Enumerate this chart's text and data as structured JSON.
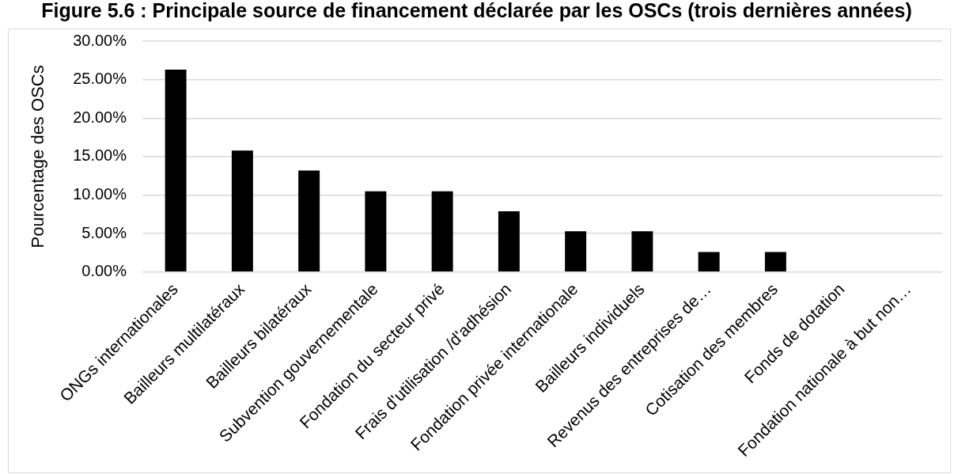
{
  "chart_data": {
    "type": "bar",
    "title": "Figure 5.6 : Principale source de financement déclarée par les OSCs (trois dernières années)",
    "ylabel": "Pourcentage des OSCs",
    "categories": [
      "ONGs internationales",
      "Bailleurs multilatéraux",
      "Bailleurs bilatéraux",
      "Subvention gouvernementale",
      "Fondation du secteur privé",
      "Frais d'utilisation /d'adhésion",
      "Fondation privée internationale",
      "Bailleurs individuels",
      "Revenus des entreprises de…",
      "Cotisation des membres",
      "Fonds de dotation",
      "Fondation nationale à but non…"
    ],
    "values": [
      26.3,
      15.8,
      13.2,
      10.5,
      10.5,
      7.9,
      5.3,
      5.3,
      2.6,
      2.6,
      0,
      0
    ],
    "color": "#000000",
    "ylim": [
      0,
      30
    ],
    "yticks": [
      {
        "value": 0,
        "label": "0.00%"
      },
      {
        "value": 5,
        "label": "5.00%"
      },
      {
        "value": 10,
        "label": "10.00%"
      },
      {
        "value": 15,
        "label": "15.00%"
      },
      {
        "value": 20,
        "label": "20.00%"
      },
      {
        "value": 25,
        "label": "25.00%"
      },
      {
        "value": 30,
        "label": "30.00%"
      }
    ],
    "grid": "y"
  }
}
